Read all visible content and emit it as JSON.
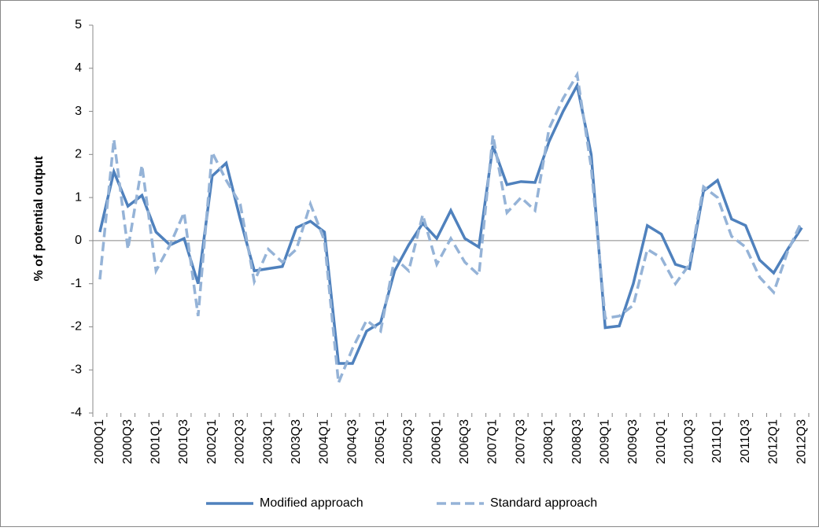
{
  "chart_data": {
    "type": "line",
    "y_label": "% of potential output",
    "categories": [
      "2000Q1",
      null,
      "2000Q3",
      null,
      "2001Q1",
      null,
      "2001Q3",
      null,
      "2002Q1",
      null,
      "2002Q3",
      null,
      "2003Q1",
      null,
      "2003Q3",
      null,
      "2004Q1",
      null,
      "2004Q3",
      null,
      "2005Q1",
      null,
      "2005Q3",
      null,
      "2006Q1",
      null,
      "2006Q3",
      null,
      "2007Q1",
      null,
      "2007Q3",
      null,
      "2008Q1",
      null,
      "2008Q3",
      null,
      "2009Q1",
      null,
      "2009Q3",
      null,
      "2010Q1",
      null,
      "2010Q3",
      null,
      "2011Q1",
      null,
      "2011Q3",
      null,
      "2012Q1",
      null,
      "2012Q3"
    ],
    "series": [
      {
        "name": "Modified approach",
        "color": "#4f81bd",
        "dashed": false,
        "values": [
          0.2,
          1.6,
          0.8,
          1.05,
          0.2,
          -0.1,
          0.05,
          -1.0,
          1.5,
          1.8,
          0.5,
          -0.7,
          -0.65,
          -0.6,
          0.3,
          0.45,
          0.2,
          -2.85,
          -2.85,
          -2.1,
          -1.9,
          -0.7,
          -0.1,
          0.4,
          0.05,
          0.7,
          0.05,
          -0.15,
          2.2,
          1.3,
          1.37,
          1.35,
          2.3,
          3.0,
          3.6,
          2.0,
          -2.02,
          -1.98,
          -1.0,
          0.35,
          0.15,
          -0.55,
          -0.65,
          1.15,
          1.4,
          0.5,
          0.35,
          -0.45,
          -0.75,
          -0.2,
          0.3
        ]
      },
      {
        "name": "Standard approach",
        "color": "#95b3d7",
        "dashed": true,
        "values": [
          -0.9,
          2.35,
          -0.2,
          1.75,
          -0.7,
          -0.1,
          0.65,
          -1.75,
          2.05,
          1.4,
          0.85,
          -0.95,
          -0.2,
          -0.5,
          -0.2,
          0.85,
          0.0,
          -3.3,
          -2.5,
          -1.85,
          -2.1,
          -0.4,
          -0.7,
          0.6,
          -0.55,
          0.05,
          -0.5,
          -0.8,
          2.45,
          0.65,
          1.0,
          0.7,
          2.6,
          3.3,
          3.85,
          1.7,
          -1.8,
          -1.75,
          -1.5,
          -0.2,
          -0.4,
          -1.0,
          -0.55,
          1.25,
          1.0,
          0.1,
          -0.15,
          -0.85,
          -1.2,
          -0.25,
          0.45
        ]
      }
    ],
    "ylim": [
      -4,
      5
    ],
    "yticks": [
      -4,
      -3,
      -2,
      -1,
      0,
      1,
      2,
      3,
      4,
      5
    ],
    "grid": false,
    "legend": "bottom"
  }
}
